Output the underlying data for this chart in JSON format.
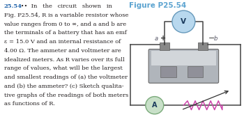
{
  "title": "Figure P25.54",
  "title_color": "#5ba3d0",
  "title_fontsize": 7.5,
  "text_lines": [
    [
      "25.54",
      "bold",
      "#1a5fa8"
    ],
    [
      " •• In   the   circuit   shown   in",
      "normal",
      "#231f20"
    ],
    [
      "Fig. P25.54, ",
      "normal",
      "#231f20"
    ],
    [
      "R",
      "italic",
      "#231f20"
    ],
    [
      " is a ",
      "normal",
      "#231f20"
    ],
    [
      "variable resistor",
      "italic",
      "#231f20"
    ],
    [
      " whose",
      "normal",
      "#231f20"
    ]
  ],
  "text_block": [
    "25.54 ••  In   the   circuit   shown   in",
    "Fig. P25.54, R is a variable resistor whose",
    "value ranges from 0 to ∞, and a and b are",
    "the terminals of a battery that has an emf",
    "ε = 15.0 V and an internal resistance of",
    "4.00 Ω. The ammeter and voltmeter are",
    "idealized meters. As R varies over its full",
    "range of values, what will be the largest",
    "and smallest readings of (a) the voltmeter",
    "and (b) the ammeter? (c) Sketch qualita-",
    "tive graphs of the readings of both meters",
    "as functions of R."
  ],
  "bg_color": "#ffffff",
  "text_color": "#231f20",
  "text_fontsize": 6.0,
  "wire_color": "#444444",
  "meter_face_color": "#c8e0c8",
  "meter_edge_color": "#7aaa7a",
  "battery_body_color": "#b0b5bb",
  "battery_top_color": "#d2d6da",
  "battery_edge_color": "#666666",
  "terminal_color": "#888888",
  "resistor_color": "#cc44aa",
  "arrow_color": "#333333",
  "R_label_color": "#cc2222",
  "label_color": "#555566"
}
